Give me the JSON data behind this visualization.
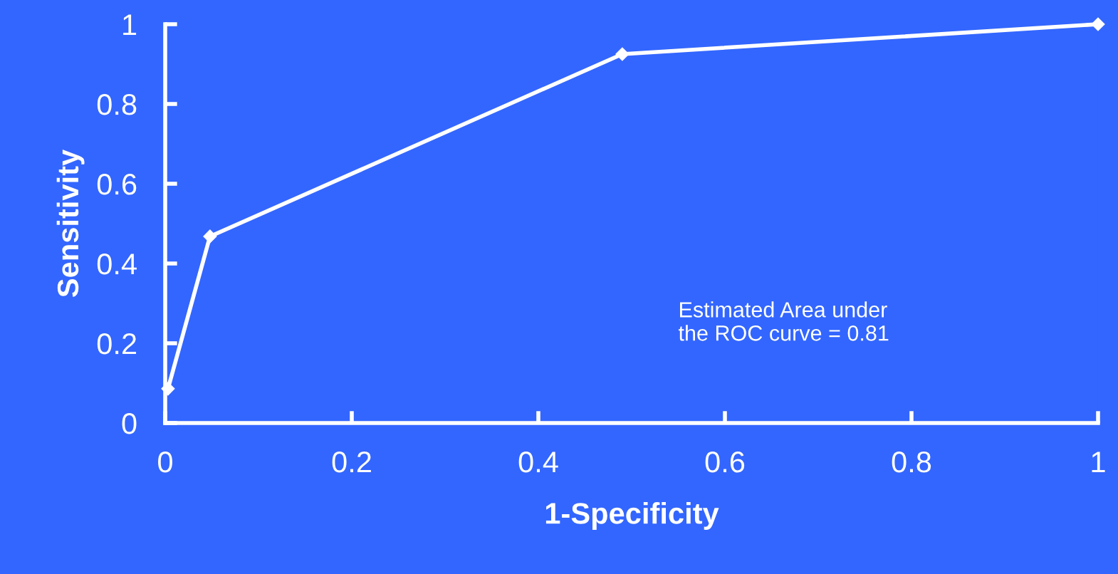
{
  "chart_data": {
    "type": "line",
    "xlabel": "1-Specificity",
    "ylabel": "Sensitivity",
    "x": [
      0.003,
      0.048,
      0.49,
      1
    ],
    "series": [
      {
        "color": "#ffffff",
        "values": [
          0.086,
          0.468,
          0.925,
          1
        ]
      }
    ],
    "xlim": [
      0,
      1
    ],
    "ylim": [
      0,
      1
    ],
    "xticks": [
      0,
      0.2,
      0.4,
      0.6,
      0.8,
      1
    ],
    "yticks": [
      0,
      0.2,
      0.4,
      0.6,
      0.8,
      1
    ],
    "grid": false,
    "legend": false,
    "marker": "diamond",
    "line_style": "solid",
    "annotations": [
      "Estimated Area under\nthe ROC curve = 0.81"
    ]
  }
}
